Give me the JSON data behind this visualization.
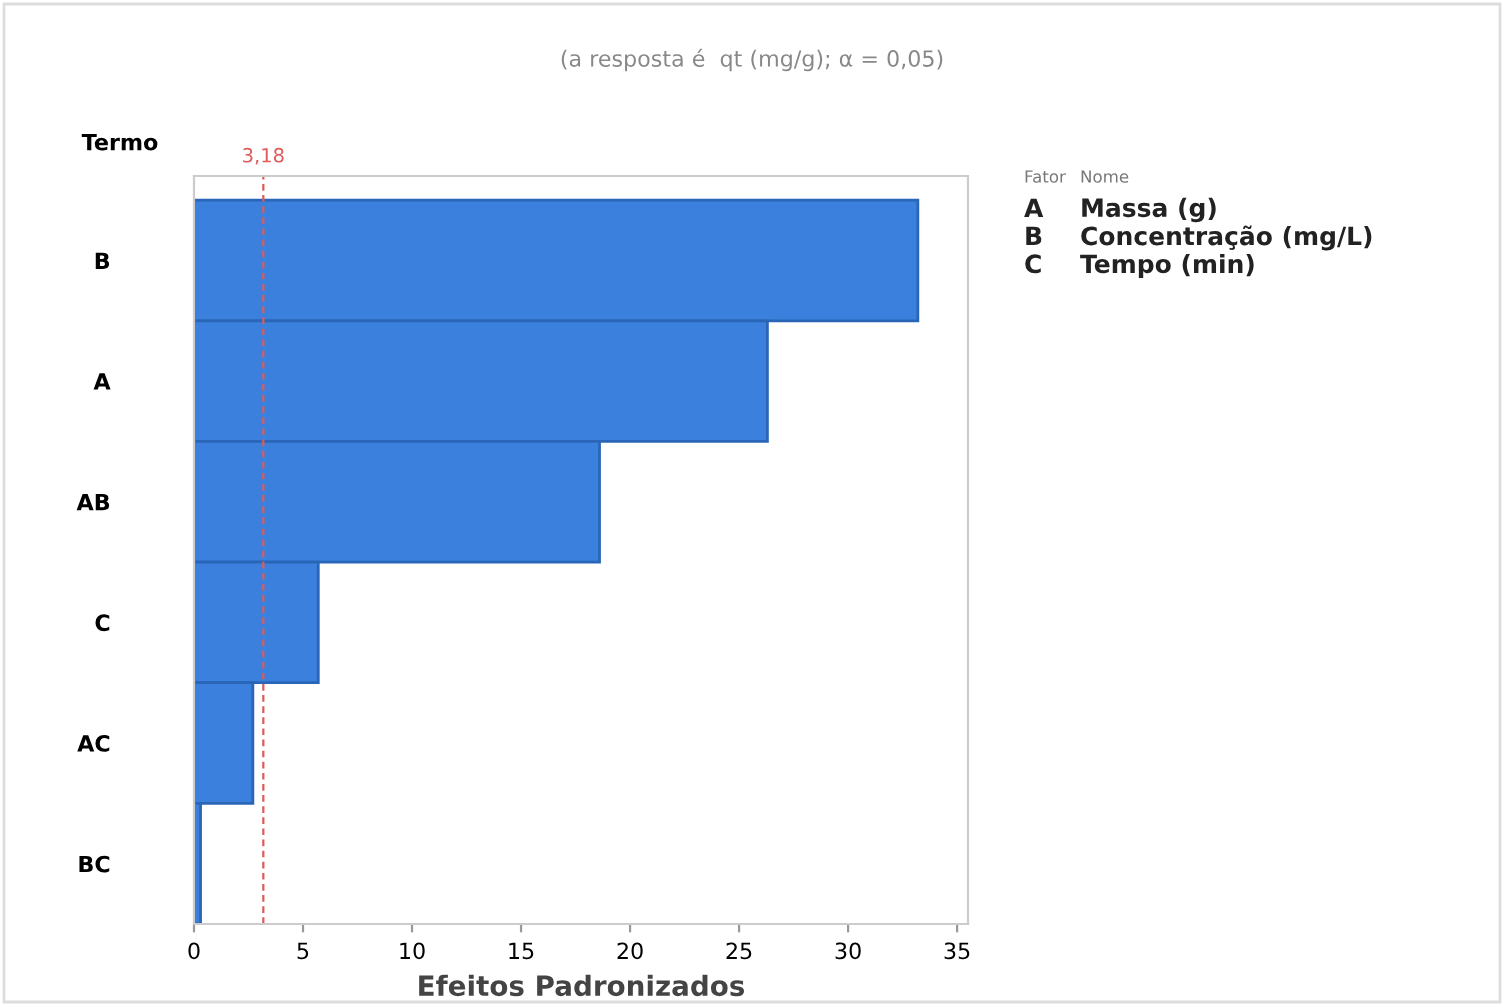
{
  "chart_data": {
    "type": "bar",
    "orientation": "horizontal",
    "title": "(a resposta é  qt (mg/g); α = 0,05)",
    "xlabel": "Efeitos Padronizados",
    "ylabel": "Termo",
    "categories": [
      "B",
      "A",
      "AB",
      "C",
      "AC",
      "BC"
    ],
    "values": [
      33.2,
      26.3,
      18.6,
      5.7,
      2.7,
      0.3
    ],
    "color": "#3a80dc",
    "xlim": [
      0,
      35.5
    ],
    "xticks": [
      0,
      5,
      10,
      15,
      20,
      25,
      30,
      35
    ],
    "ref_lines": [
      {
        "axis": "x",
        "value": 3.18,
        "label": "3,18",
        "color": "#e05a5a",
        "line_style": "dashed"
      }
    ],
    "annotations": [
      "Fator",
      "Nome",
      "A",
      "Massa (g)",
      "B",
      "Concentração (mg/L)",
      "C",
      "Tempo (min)"
    ],
    "grid": false
  }
}
